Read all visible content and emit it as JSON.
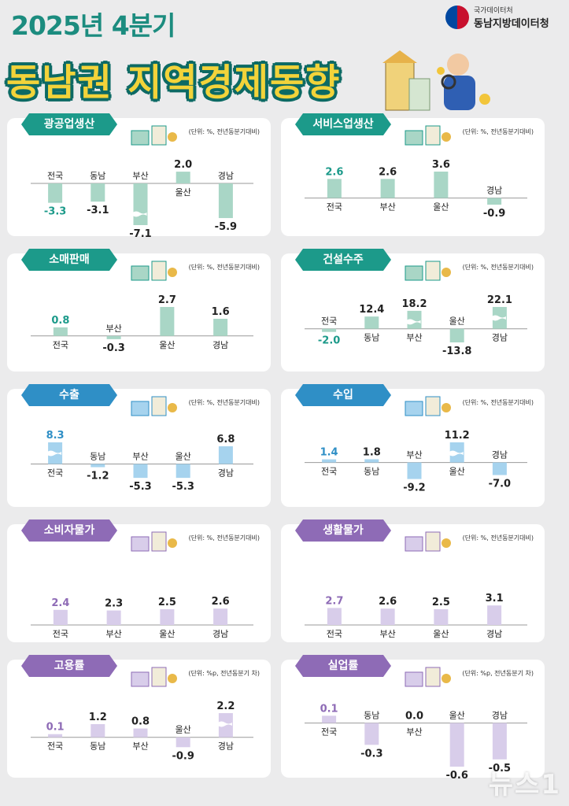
{
  "header": {
    "year_title": "2025년 4분기",
    "main_title": "동남권 지역경제동향"
  },
  "logo": {
    "line1": "국가데이터처",
    "line2": "동남지방데이터청"
  },
  "watermark": "뉴스1",
  "colors": {
    "teal": "#1c9a8a",
    "teal_bar": "#a9d6c6",
    "blue": "#2f8fc6",
    "blue_bar": "#a6d3ee",
    "purple": "#8e6bb6",
    "purple_bar": "#d8cdea"
  },
  "panels": [
    {
      "key": "mining",
      "title": "광공업생산",
      "unit": "(단위: %, 전년동분기대비)",
      "theme": "teal",
      "chart_data": {
        "type": "bar",
        "categories": [
          "전국",
          "동남",
          "부산",
          "울산",
          "경남"
        ],
        "values": [
          -3.3,
          -3.1,
          -7.1,
          2.0,
          -5.9
        ],
        "highlight": [
          0
        ],
        "broken": [
          2
        ]
      }
    },
    {
      "key": "service",
      "title": "서비스업생산",
      "unit": "(단위: %, 전년동분기대비)",
      "theme": "teal",
      "chart_data": {
        "type": "bar",
        "categories": [
          "전국",
          "부산",
          "울산",
          "경남"
        ],
        "values": [
          2.6,
          2.6,
          3.6,
          -0.9
        ],
        "highlight": [
          0
        ],
        "broken": []
      }
    },
    {
      "key": "retail",
      "title": "소매판매",
      "unit": "(단위: %, 전년동분기대비)",
      "theme": "teal",
      "chart_data": {
        "type": "bar",
        "categories": [
          "전국",
          "부산",
          "울산",
          "경남"
        ],
        "values": [
          0.8,
          -0.3,
          2.7,
          1.6
        ],
        "highlight": [
          0
        ],
        "broken": []
      }
    },
    {
      "key": "construction",
      "title": "건설수주",
      "unit": "(단위: %, 전년동분기대비)",
      "theme": "teal",
      "chart_data": {
        "type": "bar",
        "categories": [
          "전국",
          "동남",
          "부산",
          "울산",
          "경남"
        ],
        "values": [
          -2.0,
          12.4,
          18.2,
          -13.8,
          22.1
        ],
        "highlight": [
          0
        ],
        "broken": [
          2,
          4
        ]
      }
    },
    {
      "key": "export",
      "title": "수출",
      "unit": "(단위: %, 전년동분기대비)",
      "theme": "blue",
      "chart_data": {
        "type": "bar",
        "categories": [
          "전국",
          "동남",
          "부산",
          "울산",
          "경남"
        ],
        "values": [
          8.3,
          -1.2,
          -5.3,
          -5.3,
          6.8
        ],
        "highlight": [
          0
        ],
        "broken": [
          0
        ]
      }
    },
    {
      "key": "import",
      "title": "수입",
      "unit": "(단위: %, 전년동분기대비)",
      "theme": "blue",
      "chart_data": {
        "type": "bar",
        "categories": [
          "전국",
          "동남",
          "부산",
          "울산",
          "경남"
        ],
        "values": [
          1.4,
          1.8,
          -9.2,
          11.2,
          -7.0
        ],
        "highlight": [
          0
        ],
        "broken": [
          3
        ]
      }
    },
    {
      "key": "cpi",
      "title": "소비자물가",
      "unit": "(단위: %, 전년동분기대비)",
      "theme": "purple",
      "chart_data": {
        "type": "bar",
        "categories": [
          "전국",
          "부산",
          "울산",
          "경남"
        ],
        "values": [
          2.4,
          2.3,
          2.5,
          2.6
        ],
        "highlight": [
          0
        ],
        "broken": []
      }
    },
    {
      "key": "living",
      "title": "생활물가",
      "unit": "(단위: %, 전년동분기대비)",
      "theme": "purple",
      "chart_data": {
        "type": "bar",
        "categories": [
          "전국",
          "부산",
          "울산",
          "경남"
        ],
        "values": [
          2.7,
          2.6,
          2.5,
          3.1
        ],
        "highlight": [
          0
        ],
        "broken": []
      }
    },
    {
      "key": "employment",
      "title": "고용률",
      "unit": "(단위: %p, 전년동분기 차)",
      "theme": "purple",
      "chart_data": {
        "type": "bar",
        "categories": [
          "전국",
          "동남",
          "부산",
          "울산",
          "경남"
        ],
        "values": [
          0.1,
          1.2,
          0.8,
          -0.9,
          2.2
        ],
        "highlight": [
          0
        ],
        "broken": [
          4
        ]
      }
    },
    {
      "key": "unemployment",
      "title": "실업률",
      "unit": "(단위: %p, 전년동분기 차)",
      "theme": "purple",
      "chart_data": {
        "type": "bar",
        "categories": [
          "전국",
          "동남",
          "부산",
          "울산",
          "경남"
        ],
        "values": [
          0.1,
          -0.3,
          0.0,
          -0.6,
          -0.5
        ],
        "highlight": [
          0
        ],
        "broken": []
      }
    }
  ]
}
